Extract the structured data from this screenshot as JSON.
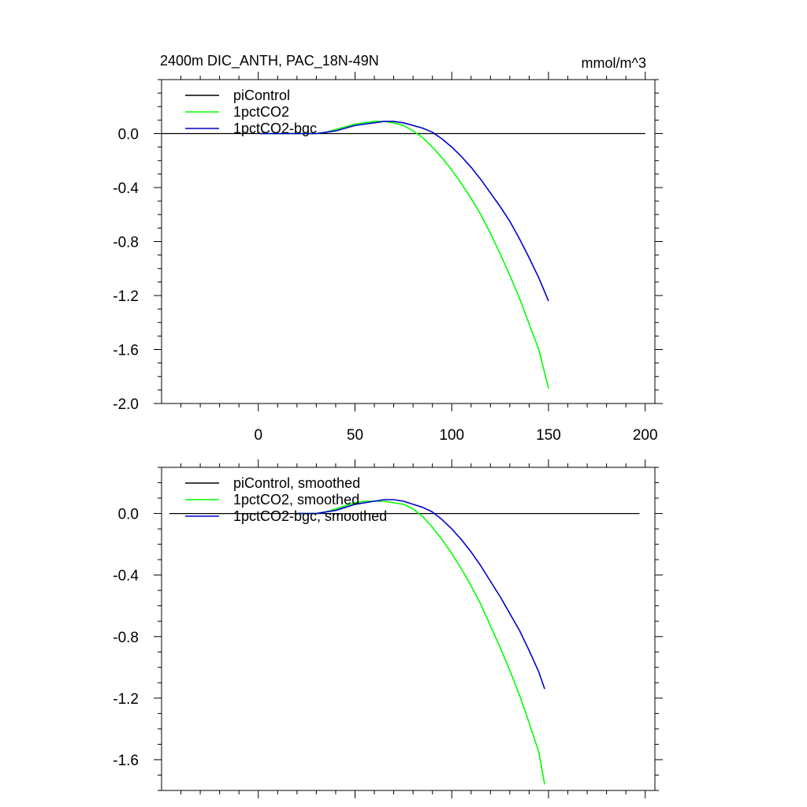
{
  "title": "2400m DIC_ANTH, PAC_18N-49N",
  "units": "mmol/m^3",
  "colors": {
    "piControl": "#000000",
    "1pctCO2": "#00ff00",
    "1pctCO2-bgc": "#0000cd",
    "axis": "#000000",
    "background": "#ffffff"
  },
  "chart_data": [
    {
      "type": "line",
      "panel": "top",
      "xlim": [
        -50,
        205
      ],
      "ylim": [
        -2.0,
        0.4
      ],
      "x_ticks": [
        0,
        50,
        100,
        150,
        200
      ],
      "x_tick_labels": [
        "0",
        "50",
        "100",
        "150",
        "200"
      ],
      "y_ticks": [
        0.0,
        -0.4,
        -0.8,
        -1.2,
        -1.6,
        -2.0
      ],
      "y_tick_labels": [
        "0.0",
        "-0.4",
        "-0.8",
        "-1.2",
        "-1.6",
        "-2.0"
      ],
      "grid": false,
      "legend_position": "top-left",
      "series": [
        {
          "name": "piControl",
          "color": "#000000",
          "x": [
            -50,
            200
          ],
          "y": [
            0.0,
            0.0
          ]
        },
        {
          "name": "1pctCO2",
          "color": "#00ff00",
          "x": [
            1,
            10,
            20,
            30,
            35,
            40,
            45,
            50,
            55,
            60,
            65,
            70,
            75,
            80,
            85,
            90,
            95,
            100,
            105,
            110,
            115,
            120,
            125,
            130,
            135,
            140,
            145,
            150
          ],
          "y": [
            0.0,
            0.0,
            0.0,
            0.0,
            0.01,
            0.03,
            0.05,
            0.07,
            0.08,
            0.09,
            0.09,
            0.08,
            0.06,
            0.02,
            -0.03,
            -0.1,
            -0.18,
            -0.27,
            -0.37,
            -0.48,
            -0.6,
            -0.74,
            -0.89,
            -1.05,
            -1.22,
            -1.41,
            -1.6,
            -1.89
          ]
        },
        {
          "name": "1pctCO2-bgc",
          "color": "#0000cd",
          "x": [
            1,
            10,
            20,
            30,
            35,
            40,
            45,
            50,
            55,
            60,
            65,
            70,
            75,
            80,
            85,
            90,
            95,
            100,
            105,
            110,
            115,
            120,
            125,
            130,
            135,
            140,
            145,
            150
          ],
          "y": [
            0.0,
            0.0,
            0.0,
            0.0,
            0.01,
            0.02,
            0.04,
            0.06,
            0.07,
            0.08,
            0.09,
            0.09,
            0.08,
            0.06,
            0.04,
            0.01,
            -0.04,
            -0.1,
            -0.17,
            -0.25,
            -0.34,
            -0.44,
            -0.54,
            -0.65,
            -0.78,
            -0.92,
            -1.07,
            -1.24
          ]
        }
      ],
      "title": "2400m DIC_ANTH, PAC_18N-49N",
      "units": "mmol/m^3"
    },
    {
      "type": "line",
      "panel": "bottom",
      "xlim": [
        -50,
        205
      ],
      "ylim": [
        -1.8,
        0.3
      ],
      "y_ticks": [
        0.0,
        -0.4,
        -0.8,
        -1.2,
        -1.6
      ],
      "y_tick_labels": [
        "0.0",
        "-0.4",
        "-0.8",
        "-1.2",
        "-1.6"
      ],
      "grid": false,
      "legend_position": "top-left",
      "series": [
        {
          "name": "piControl, smoothed",
          "color": "#000000",
          "x": [
            -46,
            197
          ],
          "y": [
            0.0,
            0.0
          ]
        },
        {
          "name": "1pctCO2, smoothed",
          "color": "#00ff00",
          "x": [
            20,
            30,
            35,
            40,
            45,
            50,
            55,
            60,
            65,
            70,
            75,
            80,
            85,
            90,
            95,
            100,
            105,
            110,
            115,
            120,
            125,
            130,
            135,
            140,
            145,
            148
          ],
          "y": [
            0.0,
            0.0,
            0.01,
            0.03,
            0.05,
            0.07,
            0.08,
            0.08,
            0.08,
            0.07,
            0.06,
            0.03,
            -0.02,
            -0.09,
            -0.17,
            -0.26,
            -0.36,
            -0.47,
            -0.59,
            -0.73,
            -0.87,
            -1.02,
            -1.18,
            -1.36,
            -1.55,
            -1.76
          ]
        },
        {
          "name": "1pctCO2-bgc, smoothed",
          "color": "#0000cd",
          "x": [
            20,
            30,
            35,
            40,
            45,
            50,
            55,
            60,
            65,
            70,
            75,
            80,
            85,
            90,
            95,
            100,
            105,
            110,
            115,
            120,
            125,
            130,
            135,
            140,
            145,
            148
          ],
          "y": [
            0.0,
            0.0,
            0.01,
            0.02,
            0.04,
            0.06,
            0.07,
            0.08,
            0.09,
            0.09,
            0.08,
            0.06,
            0.04,
            0.01,
            -0.04,
            -0.1,
            -0.17,
            -0.25,
            -0.34,
            -0.44,
            -0.54,
            -0.65,
            -0.76,
            -0.89,
            -1.03,
            -1.14
          ]
        }
      ]
    }
  ]
}
